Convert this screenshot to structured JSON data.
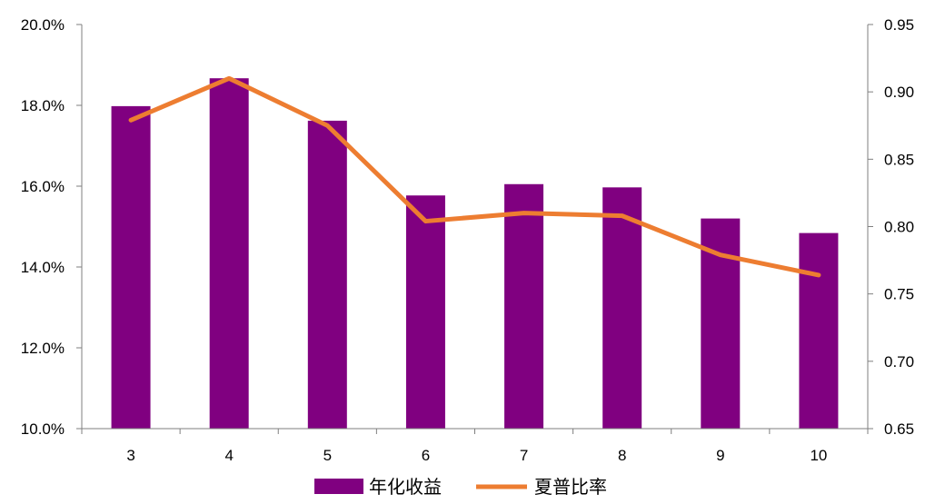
{
  "chart_data": {
    "type": "bar",
    "categories": [
      "3",
      "4",
      "5",
      "6",
      "7",
      "8",
      "9",
      "10"
    ],
    "series": [
      {
        "name": "年化收益",
        "type": "bar",
        "axis": "left",
        "color": "#800080",
        "values": [
          17.98,
          18.67,
          17.62,
          15.77,
          16.05,
          15.97,
          15.2,
          14.84
        ]
      },
      {
        "name": "夏普比率",
        "type": "line",
        "axis": "right",
        "color": "#ED7D31",
        "values": [
          0.879,
          0.91,
          0.875,
          0.804,
          0.81,
          0.808,
          0.779,
          0.764
        ]
      }
    ],
    "y_left": {
      "min": 10,
      "max": 20,
      "step": 2,
      "ticks": [
        "10.0%",
        "12.0%",
        "14.0%",
        "16.0%",
        "18.0%",
        "20.0%"
      ]
    },
    "y_right": {
      "min": 0.65,
      "max": 0.95,
      "step": 0.05,
      "ticks": [
        "0.65",
        "0.70",
        "0.75",
        "0.80",
        "0.85",
        "0.90",
        "0.95"
      ]
    },
    "grid": false,
    "legend": "bottom-center"
  }
}
